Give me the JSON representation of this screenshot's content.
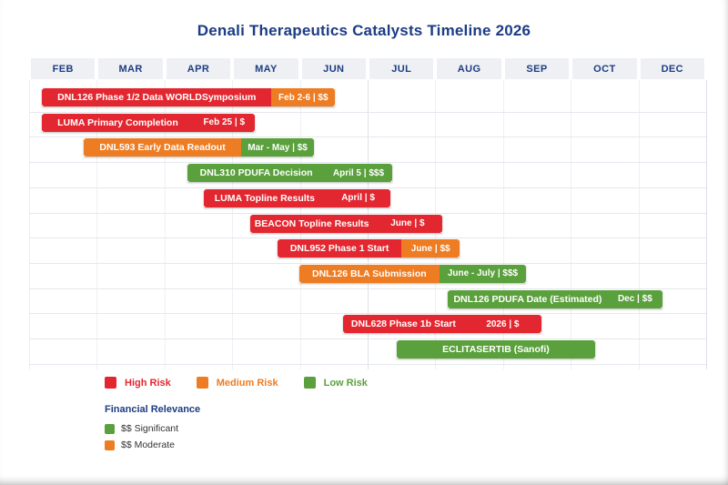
{
  "title": "Denali Therapeutics Catalysts Timeline 2026",
  "colors": {
    "red": "#e32730",
    "orange": "#ed7c22",
    "green": "#5aa03c",
    "navy": "#1d3d82"
  },
  "legend": {
    "risk": [
      {
        "label": "High Risk",
        "color_key": "red"
      },
      {
        "label": "Medium Risk",
        "color_key": "orange"
      },
      {
        "label": "Low Risk",
        "color_key": "green"
      }
    ],
    "financial": {
      "title": "Financial Relevance",
      "items": [
        {
          "text": "$$  Significant",
          "color_key": "green"
        },
        {
          "text": "$$  Moderate",
          "color_key": "orange"
        }
      ]
    }
  },
  "chart_data": {
    "type": "gantt",
    "title": "Denali Therapeutics Catalysts Timeline 2026",
    "columns": [
      "FEB",
      "MAR",
      "APR",
      "MAY",
      "JUN",
      "JUL",
      "AUG",
      "SEP",
      "OCT",
      "DEC"
    ],
    "events": [
      {
        "name": "DNL126 Phase 1/2 Data WORLDSymposium",
        "tag": "Feb 2-6 | $$",
        "risk": "High Risk",
        "name_color": "red",
        "tag_color": "orange",
        "row": 0,
        "col_start": 0.19,
        "col_split": 3.58,
        "col_end": 4.52
      },
      {
        "name": "LUMA Primary Completion",
        "tag": "Feb 25 | $",
        "risk": "High Risk",
        "name_color": "red",
        "tag_color": "red",
        "row": 1,
        "col_start": 0.19,
        "col_split": 2.43,
        "col_end": 3.33
      },
      {
        "name": "DNL593 Early Data Readout",
        "tag": "Mar - May | $$",
        "risk": "Medium Risk",
        "name_color": "orange",
        "tag_color": "green",
        "row": 2,
        "col_start": 0.81,
        "col_split": 3.13,
        "col_end": 4.21
      },
      {
        "name": "DNL310 PDUFA Decision",
        "tag": "April 5 | $$$",
        "risk": "Low Risk",
        "name_color": "green",
        "tag_color": "green",
        "row": 3,
        "col_start": 2.34,
        "col_split": 4.37,
        "col_end": 5.36
      },
      {
        "name": "LUMA Topline Results",
        "tag": "April | $",
        "risk": "High Risk",
        "name_color": "red",
        "tag_color": "red",
        "row": 4,
        "col_start": 2.58,
        "col_split": 4.38,
        "col_end": 5.34
      },
      {
        "name": "BEACON Topline Results",
        "tag": "June | $",
        "risk": "High Risk",
        "name_color": "red",
        "tag_color": "red",
        "row": 5,
        "col_start": 3.27,
        "col_split": 5.08,
        "col_end": 6.1
      },
      {
        "name": "DNL952 Phase 1 Start",
        "tag": "June | $$",
        "risk": "High Risk",
        "name_color": "red",
        "tag_color": "orange",
        "row": 6,
        "col_start": 3.67,
        "col_split": 5.5,
        "col_end": 6.36
      },
      {
        "name": "DNL126 BLA Submission",
        "tag": "June - July | $$$",
        "risk": "Medium Risk",
        "name_color": "orange",
        "tag_color": "green",
        "row": 7,
        "col_start": 3.99,
        "col_split": 6.06,
        "col_end": 7.34
      },
      {
        "name": "DNL126 PDUFA Date (Estimated)",
        "tag": "Dec | $$",
        "risk": "Low Risk",
        "name_color": "green",
        "tag_color": "green",
        "row": 8,
        "col_start": 6.18,
        "col_split": 8.55,
        "col_end": 9.35
      },
      {
        "name": "DNL628 Phase 1b Start",
        "tag": "2026 | $",
        "risk": "High Risk",
        "name_color": "red",
        "tag_color": "red",
        "row": 9,
        "col_start": 4.64,
        "col_split": 6.42,
        "col_end": 7.57
      },
      {
        "name": "ECLITASERTIB (Sanofi)",
        "tag": null,
        "risk": "Low Risk",
        "name_color": "green",
        "tag_color": null,
        "row": 10,
        "col_start": 5.43,
        "col_split": null,
        "col_end": 8.36
      }
    ]
  }
}
